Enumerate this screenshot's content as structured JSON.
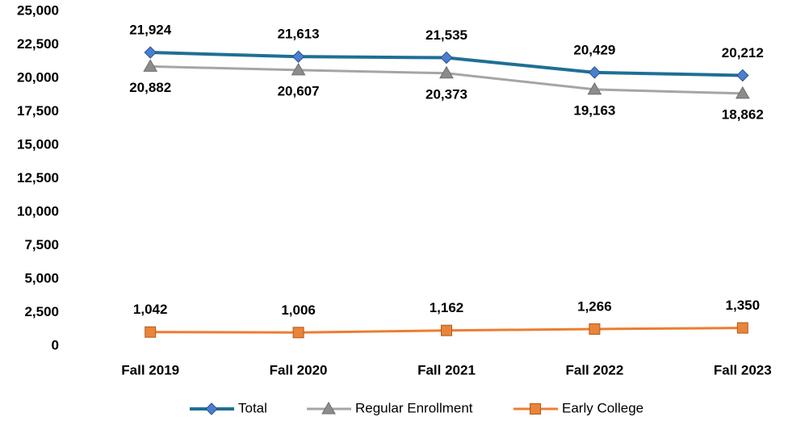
{
  "chart_data": {
    "type": "line",
    "categories": [
      "Fall 2019",
      "Fall 2020",
      "Fall 2021",
      "Fall 2022",
      "Fall 2023"
    ],
    "series": [
      {
        "name": "Total",
        "color": "#1f6f95",
        "marker": "diamond",
        "values": [
          21924,
          21613,
          21535,
          20429,
          20212
        ],
        "value_labels": [
          "21,924",
          "21,613",
          "21,535",
          "20,429",
          "20,212"
        ]
      },
      {
        "name": "Regular Enrollment",
        "color": "#a5a5a5",
        "marker": "triangle",
        "values": [
          20882,
          20607,
          20373,
          19163,
          18862
        ],
        "value_labels": [
          "20,882",
          "20,607",
          "20,373",
          "19,163",
          "18,862"
        ]
      },
      {
        "name": "Early College",
        "color": "#ed7d31",
        "marker": "square",
        "values": [
          1042,
          1006,
          1162,
          1266,
          1350
        ],
        "value_labels": [
          "1,042",
          "1,006",
          "1,162",
          "1,266",
          "1,350"
        ]
      }
    ],
    "ylim": [
      0,
      25000
    ],
    "yticks": [
      0,
      {
        "value": 2500,
        "label": "2,500"
      },
      {
        "value": 5000,
        "label": "5,000"
      },
      {
        "value": 7500,
        "label": "7,500"
      },
      {
        "value": 10000,
        "label": "10,000"
      },
      {
        "value": 12500,
        "label": "12,500"
      },
      {
        "value": 15000,
        "label": "15,000"
      },
      {
        "value": 17500,
        "label": "17,500"
      },
      {
        "value": 20000,
        "label": "20,000"
      },
      {
        "value": 22500,
        "label": "22,500"
      },
      {
        "value": 25000,
        "label": "25,000"
      }
    ],
    "grid": false,
    "legend": "bottom"
  }
}
